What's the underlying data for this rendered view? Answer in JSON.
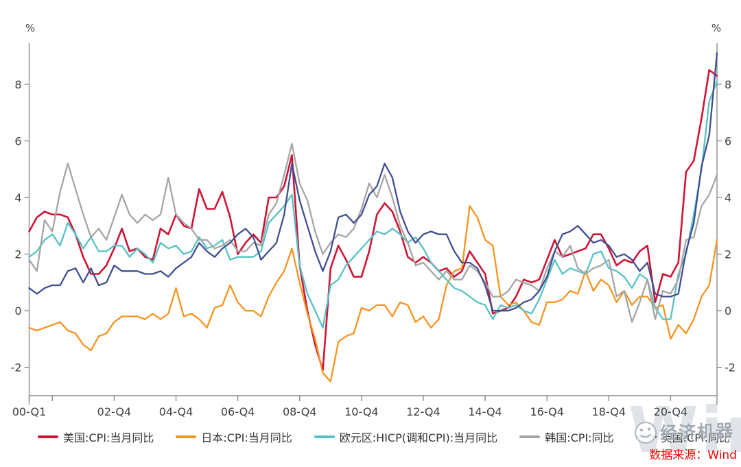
{
  "source_note": "数据来源：Wind",
  "watermark": {
    "account_name": "经济机器",
    "vendor": "Wind"
  },
  "chart_data": {
    "type": "line",
    "title": "",
    "y_unit_left": "%",
    "y_unit_right": "%",
    "x_unit": "quarter",
    "x_range": [
      "00-Q1",
      "22-Q2"
    ],
    "n_points": 90,
    "x_tick_labels": [
      "00-Q1",
      "02-Q4",
      "04-Q4",
      "06-Q4",
      "08-Q4",
      "10-Q4",
      "12-Q4",
      "14-Q4",
      "16-Q4",
      "18-Q4",
      "20-Q4"
    ],
    "x_tick_indices": [
      0,
      11,
      19,
      27,
      35,
      43,
      51,
      59,
      67,
      75,
      83
    ],
    "x_minor_tick_indices": [
      3
    ],
    "y_ticks": [
      -2,
      0,
      2,
      4,
      6,
      8
    ],
    "ylim": [
      -3.0,
      9.45
    ],
    "grid": false,
    "legend_position": "bottom",
    "series": [
      {
        "name": "美国:CPI:当月同比",
        "color": "#D01335",
        "values": [
          2.8,
          3.3,
          3.5,
          3.4,
          3.4,
          3.3,
          2.7,
          1.9,
          1.3,
          1.3,
          1.6,
          2.2,
          2.9,
          2.1,
          2.2,
          1.9,
          1.8,
          2.9,
          2.7,
          3.4,
          3.0,
          2.9,
          4.3,
          3.6,
          3.6,
          4.2,
          3.3,
          2.0,
          2.4,
          2.7,
          2.4,
          4.0,
          4.0,
          4.4,
          5.5,
          1.6,
          0.0,
          -1.2,
          -2.1,
          1.5,
          2.3,
          1.8,
          1.2,
          1.2,
          2.1,
          3.4,
          3.8,
          3.5,
          2.8,
          1.9,
          1.7,
          1.9,
          1.7,
          1.4,
          1.5,
          1.2,
          1.4,
          2.1,
          1.7,
          1.3,
          -0.1,
          0.0,
          0.1,
          0.5,
          1.1,
          1.0,
          1.1,
          1.8,
          2.5,
          1.9,
          2.0,
          2.1,
          2.2,
          2.7,
          2.7,
          2.2,
          1.6,
          1.8,
          1.7,
          2.1,
          2.3,
          0.3,
          1.3,
          1.2,
          1.7,
          4.9,
          5.3,
          6.8,
          8.5,
          8.3
        ]
      },
      {
        "name": "日本:CPI:当月同比",
        "color": "#F79320",
        "values": [
          -0.6,
          -0.7,
          -0.6,
          -0.5,
          -0.4,
          -0.7,
          -0.8,
          -1.2,
          -1.4,
          -0.9,
          -0.8,
          -0.4,
          -0.2,
          -0.2,
          -0.2,
          -0.3,
          -0.1,
          -0.3,
          -0.1,
          0.8,
          -0.2,
          -0.1,
          -0.3,
          -0.6,
          0.1,
          0.2,
          0.9,
          0.3,
          0.0,
          0.0,
          -0.2,
          0.5,
          1.0,
          1.4,
          2.2,
          1.0,
          -0.1,
          -1.0,
          -2.2,
          -2.5,
          -1.1,
          -0.9,
          -0.8,
          0.1,
          0.0,
          0.2,
          0.2,
          -0.2,
          0.3,
          0.2,
          -0.4,
          -0.2,
          -0.6,
          -0.3,
          0.9,
          1.4,
          1.5,
          3.7,
          3.3,
          2.5,
          2.3,
          0.5,
          0.2,
          0.3,
          0.0,
          -0.4,
          -0.5,
          0.3,
          0.3,
          0.4,
          0.7,
          0.6,
          1.4,
          0.7,
          1.1,
          0.9,
          0.3,
          0.7,
          0.2,
          0.5,
          0.5,
          0.1,
          0.2,
          -1.0,
          -0.5,
          -0.8,
          -0.3,
          0.5,
          0.9,
          2.5
        ]
      },
      {
        "name": "欧元区:HICP(调和CPI):当月同比",
        "color": "#56C2C6",
        "values": [
          1.9,
          2.1,
          2.5,
          2.7,
          2.3,
          3.1,
          2.7,
          2.2,
          2.6,
          2.1,
          2.1,
          2.3,
          2.3,
          1.9,
          2.2,
          2.0,
          1.7,
          2.4,
          2.2,
          2.3,
          2.0,
          2.1,
          2.6,
          2.2,
          2.3,
          2.5,
          1.8,
          1.9,
          1.9,
          1.9,
          2.1,
          3.1,
          3.4,
          3.7,
          4.1,
          1.6,
          0.6,
          0.0,
          -0.6,
          0.9,
          1.1,
          1.6,
          1.9,
          2.2,
          2.5,
          2.8,
          2.7,
          2.9,
          2.7,
          2.4,
          2.6,
          2.2,
          1.7,
          1.4,
          1.1,
          0.8,
          0.7,
          0.5,
          0.3,
          0.2,
          -0.3,
          0.2,
          0.1,
          0.2,
          0.0,
          -0.1,
          0.4,
          1.1,
          1.8,
          1.3,
          1.5,
          1.4,
          1.3,
          2.0,
          2.1,
          1.5,
          1.4,
          1.2,
          0.8,
          1.3,
          1.1,
          0.1,
          -0.3,
          -0.3,
          1.3,
          2.0,
          3.4,
          5.0,
          7.4,
          8.1
        ]
      },
      {
        "name": "韩国:CPI:同比",
        "color": "#A5A5A5",
        "values": [
          1.8,
          1.4,
          3.2,
          2.8,
          4.2,
          5.2,
          4.3,
          3.4,
          2.6,
          2.9,
          2.5,
          3.3,
          4.1,
          3.4,
          3.1,
          3.4,
          3.2,
          3.4,
          4.7,
          3.4,
          3.1,
          2.9,
          2.5,
          2.5,
          2.2,
          2.3,
          2.5,
          2.1,
          2.1,
          2.4,
          2.3,
          3.4,
          3.8,
          4.8,
          5.9,
          4.5,
          3.9,
          2.8,
          2.0,
          2.4,
          2.7,
          2.6,
          2.9,
          3.6,
          4.5,
          4.0,
          4.8,
          4.0,
          3.0,
          2.4,
          1.6,
          1.7,
          1.4,
          1.1,
          1.4,
          1.1,
          1.1,
          1.6,
          1.4,
          1.0,
          0.5,
          0.5,
          0.7,
          1.1,
          1.0,
          0.9,
          0.7,
          1.5,
          2.1,
          1.9,
          2.3,
          1.5,
          1.3,
          1.5,
          1.6,
          1.8,
          0.5,
          0.7,
          -0.4,
          0.3,
          1.1,
          -0.3,
          0.7,
          0.6,
          1.1,
          2.5,
          2.6,
          3.7,
          4.1,
          4.8
        ]
      },
      {
        "name": "英国:CPI:同比",
        "color": "#3F4F90",
        "values": [
          0.8,
          0.6,
          0.8,
          0.9,
          0.9,
          1.4,
          1.5,
          1.0,
          1.5,
          0.9,
          1.0,
          1.6,
          1.4,
          1.4,
          1.4,
          1.3,
          1.3,
          1.4,
          1.2,
          1.5,
          1.7,
          1.9,
          2.4,
          2.1,
          1.9,
          2.2,
          2.4,
          2.7,
          2.9,
          2.6,
          1.8,
          2.1,
          2.4,
          3.4,
          5.2,
          3.9,
          3.0,
          2.1,
          1.4,
          2.1,
          3.3,
          3.4,
          3.1,
          3.4,
          4.1,
          4.4,
          5.2,
          4.7,
          3.5,
          2.8,
          2.4,
          2.7,
          2.8,
          2.7,
          2.7,
          2.1,
          1.7,
          1.7,
          1.5,
          0.9,
          0.0,
          0.0,
          0.0,
          0.1,
          0.3,
          0.4,
          0.7,
          1.2,
          2.1,
          2.7,
          2.8,
          3.0,
          2.7,
          2.4,
          2.5,
          2.3,
          1.9,
          2.0,
          1.8,
          1.4,
          1.7,
          0.6,
          0.5,
          0.5,
          0.6,
          2.1,
          3.1,
          5.1,
          6.2,
          9.1
        ]
      }
    ]
  }
}
